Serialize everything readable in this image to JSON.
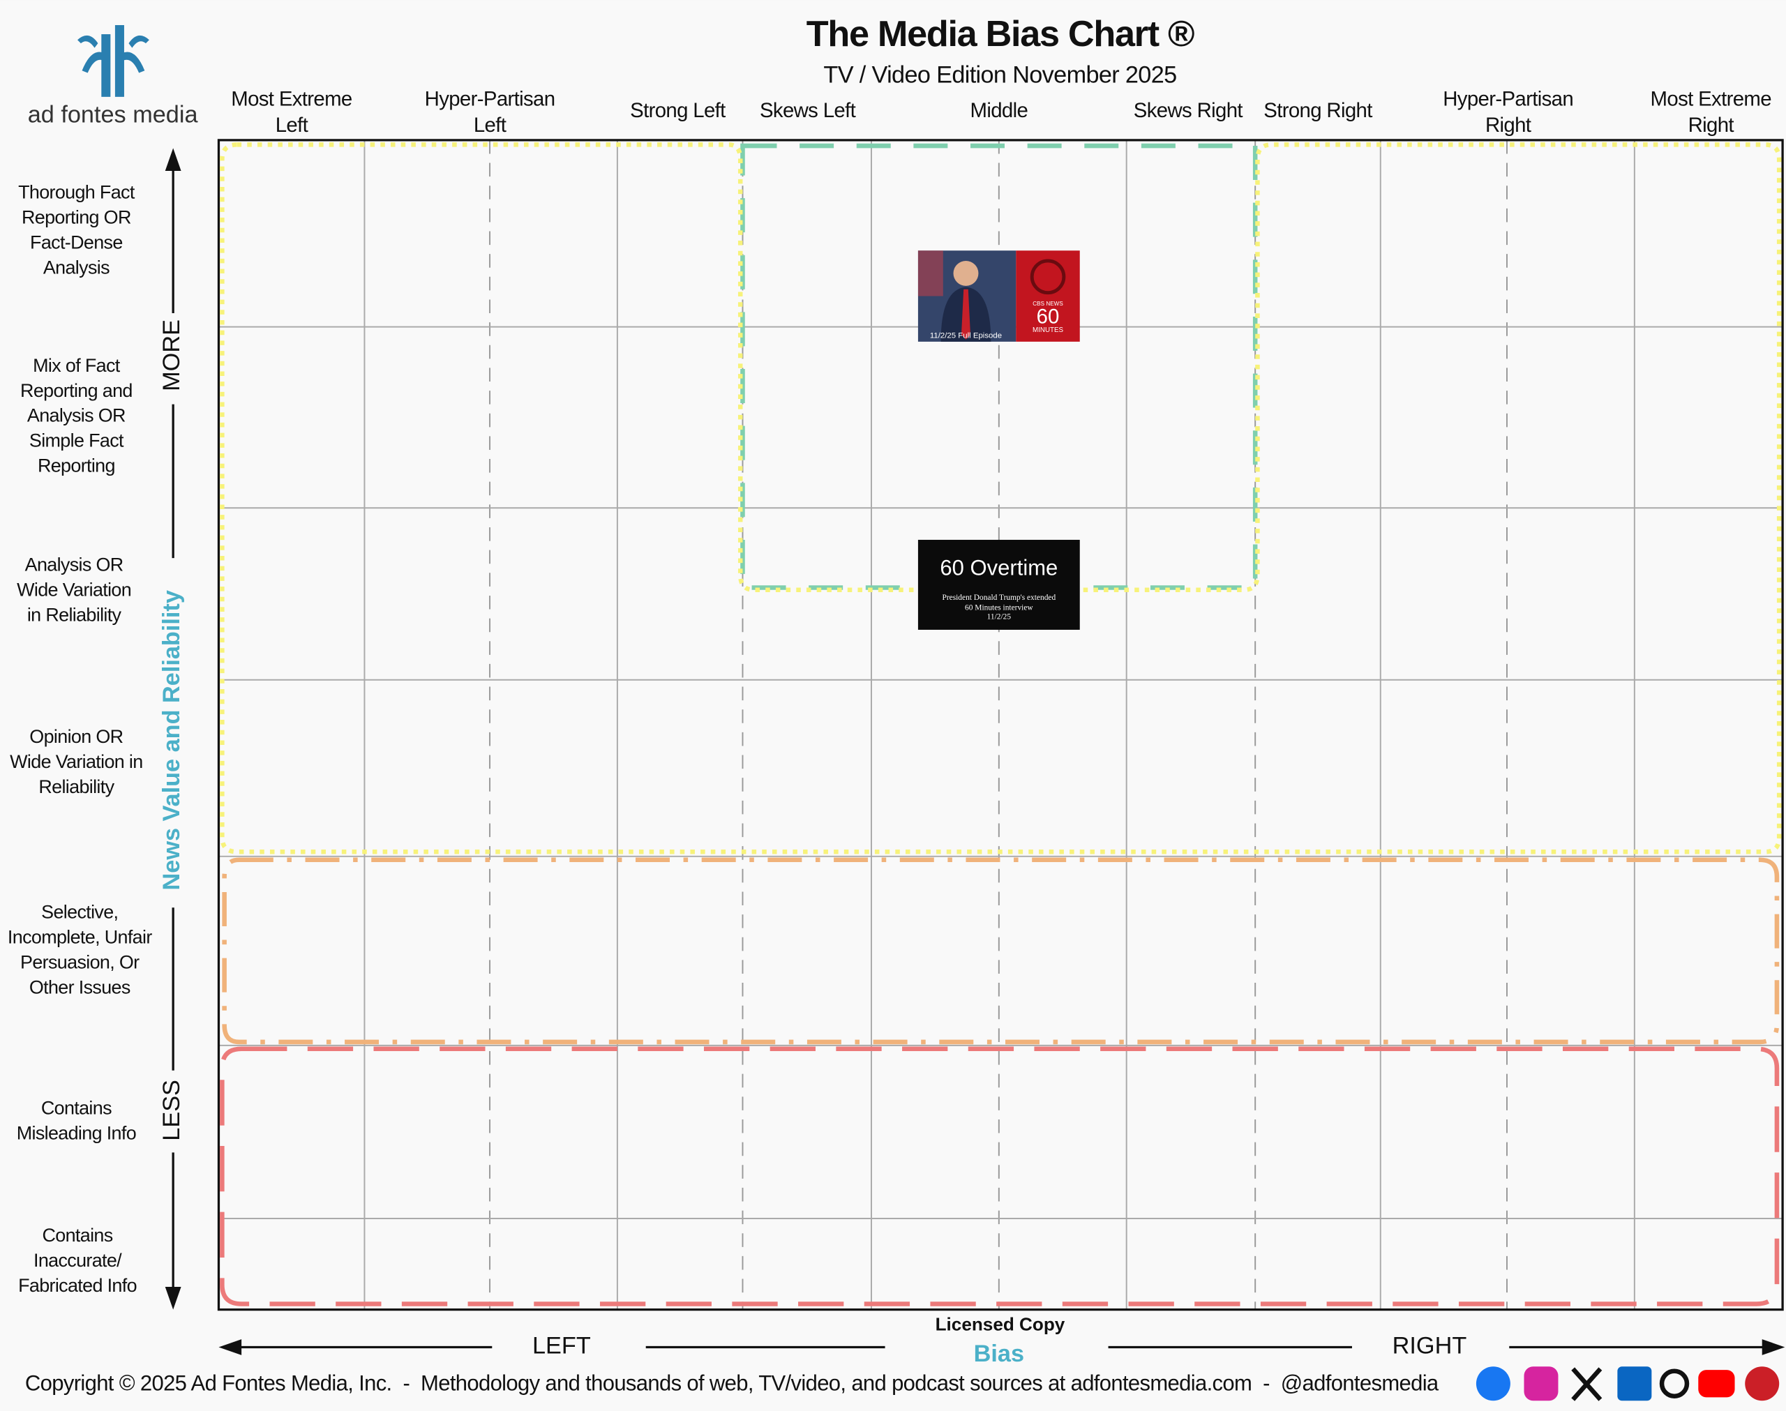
{
  "header": {
    "logo_text": "ad fontes media",
    "title": "The Media Bias Chart ®",
    "subtitle": "TV / Video Edition November 2025"
  },
  "columns": [
    [
      "Most Extreme",
      "Left"
    ],
    [
      "Hyper-Partisan",
      "Left"
    ],
    [
      "Strong Left"
    ],
    [
      "Skews Left"
    ],
    [
      "Middle"
    ],
    [
      "Skews Right"
    ],
    [
      "Strong Right"
    ],
    [
      "Hyper-Partisan",
      "Right"
    ],
    [
      "Most Extreme",
      "Right"
    ]
  ],
  "rows": [
    [
      "Thorough Fact",
      "Reporting OR",
      "Fact-Dense",
      "Analysis"
    ],
    [
      "Mix of Fact",
      "Reporting and",
      "Analysis OR",
      "Simple Fact",
      "Reporting"
    ],
    [
      "Analysis OR",
      "Wide Variation",
      "in Reliability"
    ],
    [
      "Opinion OR",
      "Wide Variation in",
      "Reliability"
    ],
    [
      "Selective,",
      "Incomplete, Unfair",
      "Persuasion, Or",
      "Other Issues"
    ],
    [
      "Contains",
      "Misleading Info"
    ],
    [
      "Contains",
      "Inaccurate/",
      "Fabricated Info"
    ]
  ],
  "axis": {
    "more": "MORE",
    "less": "LESS",
    "y_title": "News Value and Reliability",
    "left": "LEFT",
    "right": "RIGHT",
    "license": "Licensed Copy",
    "x_title": "Bias"
  },
  "sources": [
    {
      "brand": "CBS NEWS",
      "logo": "60",
      "logo_sub": "MINUTES",
      "caption": "11/2/25 Full Episode"
    },
    {
      "logo": "60 Overtime",
      "caption": [
        "President Donald Trump's extended",
        "60 Minutes interview",
        "11/2/25"
      ]
    }
  ],
  "footer": {
    "copyright": "Copyright © 2025 Ad Fontes Media, Inc.  -  Methodology and thousands of web, TV/video, and podcast sources at adfontesmedia.com  -  @adfontesmedia"
  }
}
